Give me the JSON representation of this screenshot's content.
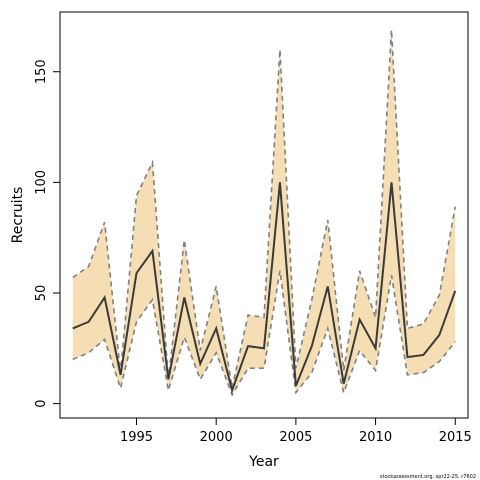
{
  "chart_data": {
    "type": "line",
    "title": "",
    "xlabel": "Year",
    "ylabel": "Recruits",
    "xlim": [
      1990.2,
      2015.8
    ],
    "ylim": [
      -6.5,
      177
    ],
    "x_ticks": [
      1995,
      2000,
      2005,
      2010,
      2015
    ],
    "y_ticks": [
      0,
      50,
      100,
      150
    ],
    "grid": false,
    "band_color": "#f5deb3",
    "line_color": "#3a3a3a",
    "bound_color": "#808080",
    "x": [
      1991,
      1992,
      1993,
      1994,
      1995,
      1996,
      1997,
      1998,
      1999,
      2000,
      2001,
      2002,
      2003,
      2004,
      2005,
      2006,
      2007,
      2008,
      2009,
      2010,
      2011,
      2012,
      2013,
      2014,
      2015
    ],
    "series": [
      {
        "role": "estimate",
        "values": [
          34,
          37,
          48,
          13,
          59,
          69,
          11,
          48,
          18,
          34,
          6,
          26,
          25,
          100,
          8,
          26,
          53,
          9,
          38,
          25,
          100,
          21,
          22,
          31,
          51
        ]
      },
      {
        "role": "upper",
        "values": [
          57,
          62,
          82,
          14,
          94,
          109,
          11,
          74,
          24,
          53,
          7,
          40,
          39,
          160,
          16,
          47,
          83,
          15,
          60,
          39,
          169,
          34,
          36,
          49,
          89
        ]
      },
      {
        "role": "lower",
        "values": [
          20,
          23,
          29,
          7,
          37,
          47,
          6,
          30,
          11,
          23,
          4,
          16,
          16,
          60,
          5,
          14,
          34,
          5,
          24,
          15,
          58,
          13,
          14,
          19,
          28
        ]
      }
    ],
    "footnote": "stockassessment.org, spr22-25, r7602"
  }
}
